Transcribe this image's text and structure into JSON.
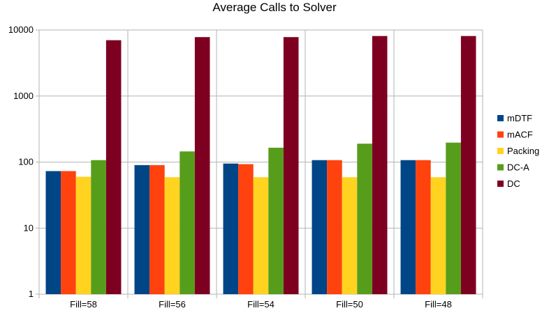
{
  "chart_data": {
    "type": "bar",
    "title": "Average Calls to Solver",
    "xlabel": "",
    "ylabel": "",
    "yscale": "log",
    "ylim": [
      1,
      10000
    ],
    "yticks": [
      "1",
      "10",
      "100",
      "1000",
      "10000"
    ],
    "grid": "horizontal",
    "legend_position": "right",
    "categories": [
      "Fill=58",
      "Fill=56",
      "Fill=54",
      "Fill=50",
      "Fill=48"
    ],
    "series": [
      {
        "name": "mDTF",
        "color": "#004586",
        "values": [
          73,
          90,
          95,
          107,
          107
        ]
      },
      {
        "name": "mACF",
        "color": "#ff420e",
        "values": [
          73,
          90,
          93,
          107,
          107
        ]
      },
      {
        "name": "Packing",
        "color": "#ffd320",
        "values": [
          60,
          59,
          59,
          59,
          59
        ]
      },
      {
        "name": "DC-A",
        "color": "#579d1c",
        "values": [
          107,
          145,
          165,
          190,
          197
        ]
      },
      {
        "name": "DC",
        "color": "#7e0021",
        "values": [
          7000,
          7800,
          7800,
          8100,
          8100
        ]
      }
    ]
  }
}
